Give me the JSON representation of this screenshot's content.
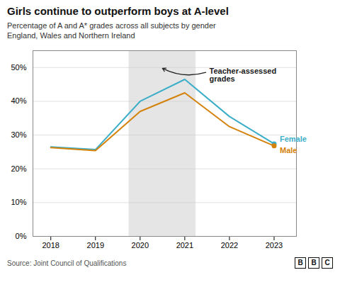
{
  "chart_data": {
    "type": "line",
    "title": "Girls continue to outperform boys at A-level",
    "subtitle": [
      "Percentage of A and A* grades across all subjects by gender",
      "England, Wales and Northern Ireland"
    ],
    "source": "Source: Joint Council of Qualifications",
    "logo": "BBC",
    "x": [
      2018,
      2019,
      2020,
      2021,
      2022,
      2023
    ],
    "series": [
      {
        "name": "Female",
        "color": "#3daec8",
        "values": [
          0.265,
          0.257,
          0.4,
          0.465,
          0.355,
          0.274
        ]
      },
      {
        "name": "Male",
        "color": "#d4820a",
        "values": [
          0.263,
          0.254,
          0.37,
          0.425,
          0.325,
          0.268
        ]
      }
    ],
    "xlim": [
      2017.6,
      2023.5
    ],
    "xticks": [
      2018,
      2019,
      2020,
      2021,
      2022,
      2023
    ],
    "ylim": [
      0.0,
      0.55
    ],
    "yticks": [
      {
        "value": 0.0,
        "label": "0%"
      },
      {
        "value": 0.1,
        "label": "10%"
      },
      {
        "value": 0.2,
        "label": "20%"
      },
      {
        "value": 0.3,
        "label": "30%"
      },
      {
        "value": 0.4,
        "label": "40%"
      },
      {
        "value": 0.5,
        "label": "50%"
      }
    ],
    "grid": true,
    "annotations": [
      {
        "text": "Teacher-assessed\ngrades",
        "x_range": [
          2020,
          2021
        ],
        "color": "#e5e5e5"
      }
    ]
  }
}
